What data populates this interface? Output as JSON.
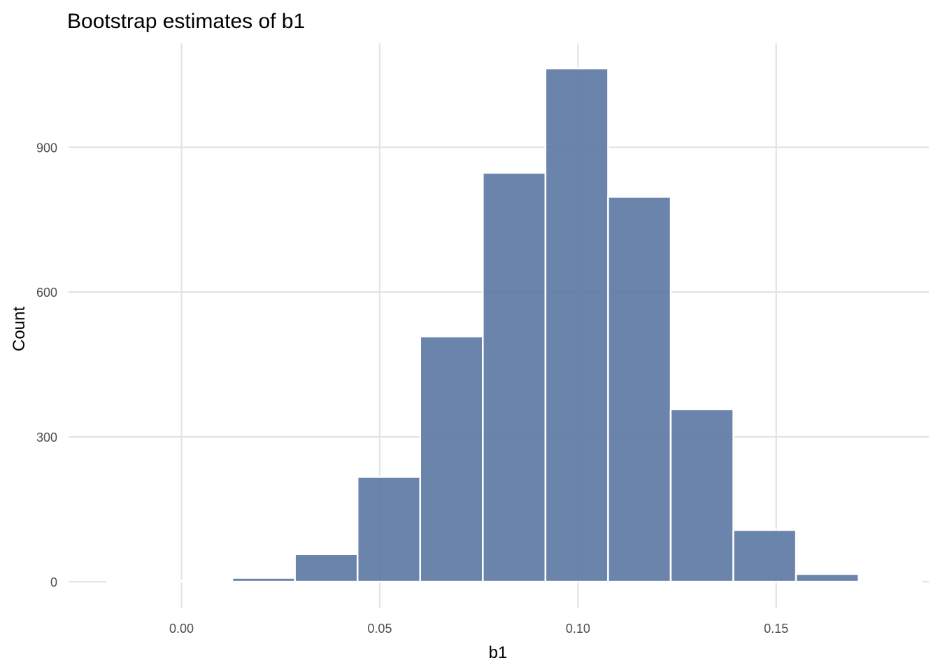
{
  "chart_data": {
    "type": "bar",
    "title": "Bootstrap estimates of b1",
    "xlabel": "b1",
    "ylabel": "Count",
    "bar_color": "#5a77a3",
    "bar_opacity": 0.9,
    "grid": true,
    "xlim": [
      -0.0285,
      0.1885
    ],
    "ylim": [
      -55,
      1115
    ],
    "x_ticks": [
      0.0,
      0.05,
      0.1,
      0.15
    ],
    "x_tick_labels": [
      "0.00",
      "0.05",
      "0.10",
      "0.15"
    ],
    "y_ticks": [
      0,
      300,
      600,
      900
    ],
    "y_tick_labels": [
      "0",
      "300",
      "600",
      "900"
    ],
    "bins": [
      {
        "x0": -0.0187,
        "x1": -0.003,
        "count": 0
      },
      {
        "x0": -0.003,
        "x1": 0.0128,
        "count": 2
      },
      {
        "x0": 0.0128,
        "x1": 0.0286,
        "count": 8
      },
      {
        "x0": 0.0286,
        "x1": 0.0444,
        "count": 57
      },
      {
        "x0": 0.0444,
        "x1": 0.0602,
        "count": 217
      },
      {
        "x0": 0.0602,
        "x1": 0.076,
        "count": 508
      },
      {
        "x0": 0.076,
        "x1": 0.0918,
        "count": 847
      },
      {
        "x0": 0.0918,
        "x1": 0.1076,
        "count": 1063
      },
      {
        "x0": 0.1076,
        "x1": 0.1234,
        "count": 797
      },
      {
        "x0": 0.1234,
        "x1": 0.1392,
        "count": 357
      },
      {
        "x0": 0.1392,
        "x1": 0.155,
        "count": 107
      },
      {
        "x0": 0.155,
        "x1": 0.1708,
        "count": 16
      },
      {
        "x0": 0.1708,
        "x1": 0.1866,
        "count": 1
      }
    ]
  }
}
